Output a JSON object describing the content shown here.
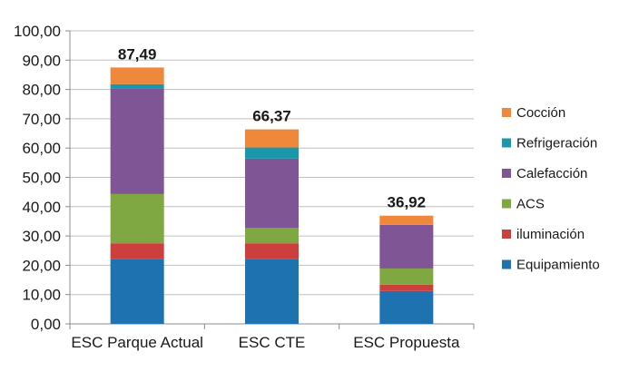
{
  "chart_data": {
    "type": "bar",
    "stacked": true,
    "title": "",
    "xlabel": "",
    "ylabel": "",
    "ylim": [
      0,
      100
    ],
    "y_tick_step": 10,
    "y_tick_labels": [
      "0,00",
      "10,00",
      "20,00",
      "30,00",
      "40,00",
      "50,00",
      "60,00",
      "70,00",
      "80,00",
      "90,00",
      "100,00"
    ],
    "grid": true,
    "legend_position": "right",
    "categories": [
      "ESC Parque Actual",
      "ESC CTE",
      "ESC Propuesta"
    ],
    "totals": [
      87.49,
      66.37,
      36.92
    ],
    "total_labels": [
      "87,49",
      "66,37",
      "36,92"
    ],
    "series": [
      {
        "name": "Equipamiento",
        "color": "#1f72b0",
        "values": [
          22.2,
          22.2,
          11.2
        ]
      },
      {
        "name": "iluminación",
        "color": "#cc3f3d",
        "values": [
          5.3,
          5.3,
          2.2
        ]
      },
      {
        "name": "ACS",
        "color": "#7fa843",
        "values": [
          16.8,
          5.2,
          5.5
        ]
      },
      {
        "name": "Calefacción",
        "color": "#7f5596",
        "values": [
          35.9,
          23.7,
          14.9
        ]
      },
      {
        "name": "Refrigeración",
        "color": "#1997ab",
        "values": [
          1.6,
          3.8,
          0.0
        ]
      },
      {
        "name": "Cocción",
        "color": "#ef883a",
        "values": [
          5.69,
          6.17,
          3.12
        ]
      }
    ]
  }
}
